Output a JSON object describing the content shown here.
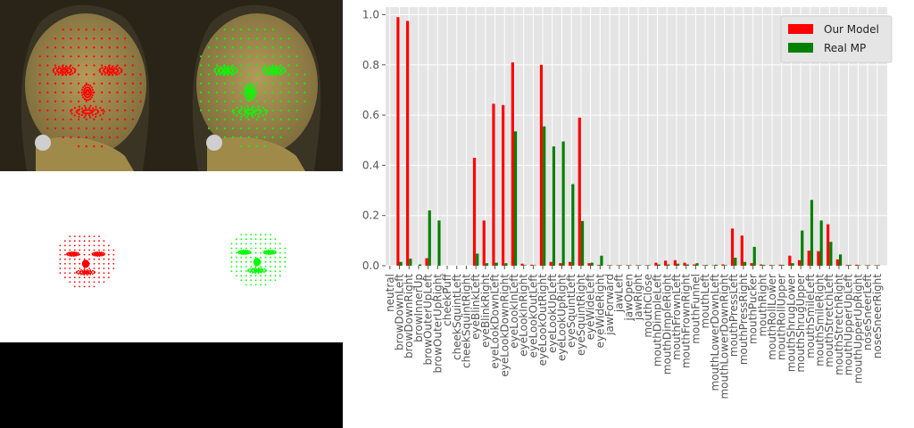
{
  "colors": {
    "model": "#ff0000",
    "mp": "#008000",
    "mesh_green": "#00ff00",
    "plot_bg": "#e5e5e5"
  },
  "chart_data": {
    "type": "bar",
    "legend_position": "top-right",
    "grid": true,
    "ylim": [
      0,
      1.03
    ],
    "yticks": [
      "0.0",
      "0.2",
      "0.4",
      "0.6",
      "0.8",
      "1.0"
    ],
    "categories": [
      "neutral",
      "browDownLeft",
      "browDownRight",
      "browInnerUp",
      "browOuterUpLeft",
      "browOuterUpRight",
      "cheekPuff",
      "cheekSquintLeft",
      "cheekSquintRight",
      "eyeBlinkLeft",
      "eyeBlinkRight",
      "eyeLookDownLeft",
      "eyeLookDownRight",
      "eyeLookInLeft",
      "eyeLookInRight",
      "eyeLookOutLeft",
      "eyeLookOutRight",
      "eyeLookUpLeft",
      "eyeLookUpRight",
      "eyeSquintLeft",
      "eyeSquintRight",
      "eyeWideLeft",
      "eyeWideRight",
      "jawForward",
      "jawLeft",
      "jawOpen",
      "jawRight",
      "mouthClose",
      "mouthDimpleLeft",
      "mouthDimpleRight",
      "mouthFrownLeft",
      "mouthFrownRight",
      "mouthFunnel",
      "mouthLeft",
      "mouthLowerDownLeft",
      "mouthLowerDownRight",
      "mouthPressLeft",
      "mouthPressRight",
      "mouthPucker",
      "mouthRight",
      "mouthRollLower",
      "mouthRollUpper",
      "mouthShrugLower",
      "mouthShrugUpper",
      "mouthSmileLeft",
      "mouthSmileRight",
      "mouthStretchLeft",
      "mouthStretchRight",
      "mouthUpperUpLeft",
      "mouthUpperUpRight",
      "noseSneerLeft",
      "noseSneerRight"
    ],
    "series": [
      {
        "name": "Our Model",
        "values": [
          0.0,
          0.99,
          0.975,
          0.0,
          0.03,
          0.0,
          0.0,
          0.0,
          0.0,
          0.43,
          0.18,
          0.645,
          0.64,
          0.81,
          0.008,
          0.004,
          0.8,
          0.015,
          0.01,
          0.015,
          0.59,
          0.01,
          0.003,
          0.002,
          0.002,
          0.002,
          0.002,
          0.002,
          0.012,
          0.02,
          0.022,
          0.012,
          0.005,
          0.002,
          0.002,
          0.005,
          0.148,
          0.12,
          0.01,
          0.005,
          0.003,
          0.004,
          0.04,
          0.022,
          0.06,
          0.058,
          0.165,
          0.025,
          0.003,
          0.004,
          0.002,
          0.002
        ]
      },
      {
        "name": "Real MP",
        "values": [
          0.0,
          0.015,
          0.028,
          0.005,
          0.22,
          0.18,
          0.0,
          0.0,
          0.0,
          0.048,
          0.01,
          0.012,
          0.01,
          0.535,
          0.002,
          0.002,
          0.555,
          0.475,
          0.495,
          0.325,
          0.178,
          0.012,
          0.04,
          0.002,
          0.002,
          0.002,
          0.002,
          0.002,
          0.005,
          0.005,
          0.008,
          0.005,
          0.01,
          0.003,
          0.004,
          0.002,
          0.032,
          0.015,
          0.075,
          0.003,
          0.002,
          0.003,
          0.01,
          0.14,
          0.262,
          0.18,
          0.095,
          0.045,
          0.003,
          0.002,
          0.002,
          0.002
        ]
      }
    ]
  }
}
